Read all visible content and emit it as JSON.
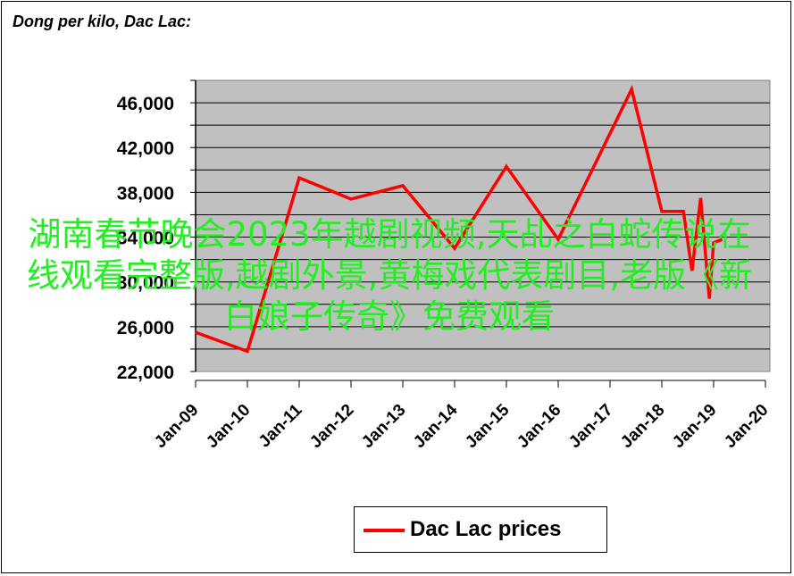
{
  "chart_data": {
    "type": "line",
    "title": "Dong per kilo, Dac Lac:",
    "xlabel": "",
    "ylabel": "",
    "x_ticks": [
      "Jan-09",
      "Jan-10",
      "Jan-11",
      "Jan-12",
      "Jan-13",
      "Jan-14",
      "Jan-15",
      "Jan-16",
      "Jan-17",
      "Jan-18",
      "Jan-19",
      "Jan-20"
    ],
    "y_ticks": [
      "22,000",
      "26,000",
      "30,000",
      "34,000",
      "38,000",
      "42,000",
      "46,000"
    ],
    "ylim": [
      22000,
      48000
    ],
    "xlim": [
      "Jan-09",
      "Jan-20"
    ],
    "grid": "horizontal",
    "plot_background": "#c0c0c0",
    "legend_position": "bottom",
    "series": [
      {
        "name": "Dac Lac prices",
        "color": "#ff0000",
        "points": [
          {
            "x": "2009-01",
            "y": 25500
          },
          {
            "x": "2010-01",
            "y": 23800
          },
          {
            "x": "2011-01",
            "y": 39300
          },
          {
            "x": "2012-01",
            "y": 37400
          },
          {
            "x": "2013-01",
            "y": 38600
          },
          {
            "x": "2014-01",
            "y": 33000
          },
          {
            "x": "2015-01",
            "y": 40300
          },
          {
            "x": "2016-01",
            "y": 33800
          },
          {
            "x": "2017-06",
            "y": 47200
          },
          {
            "x": "2018-01",
            "y": 36300
          },
          {
            "x": "2018-06",
            "y": 36300
          },
          {
            "x": "2018-08",
            "y": 31000
          },
          {
            "x": "2018-10",
            "y": 37500
          },
          {
            "x": "2018-12",
            "y": 28500
          },
          {
            "x": "2019-01",
            "y": 33500
          },
          {
            "x": "2019-03",
            "y": 33800
          }
        ]
      }
    ]
  },
  "overlay_text": "湖南春节晚会2023年越剧视频,天乩之白蛇传说在线观看完整版,越剧外景,黄梅戏代表剧目,老版《新白娘子传奇》免费观看",
  "colors": {
    "line": "#ff0000",
    "plot_bg": "#c0c0c0",
    "overlay_text": "#22ee22"
  }
}
